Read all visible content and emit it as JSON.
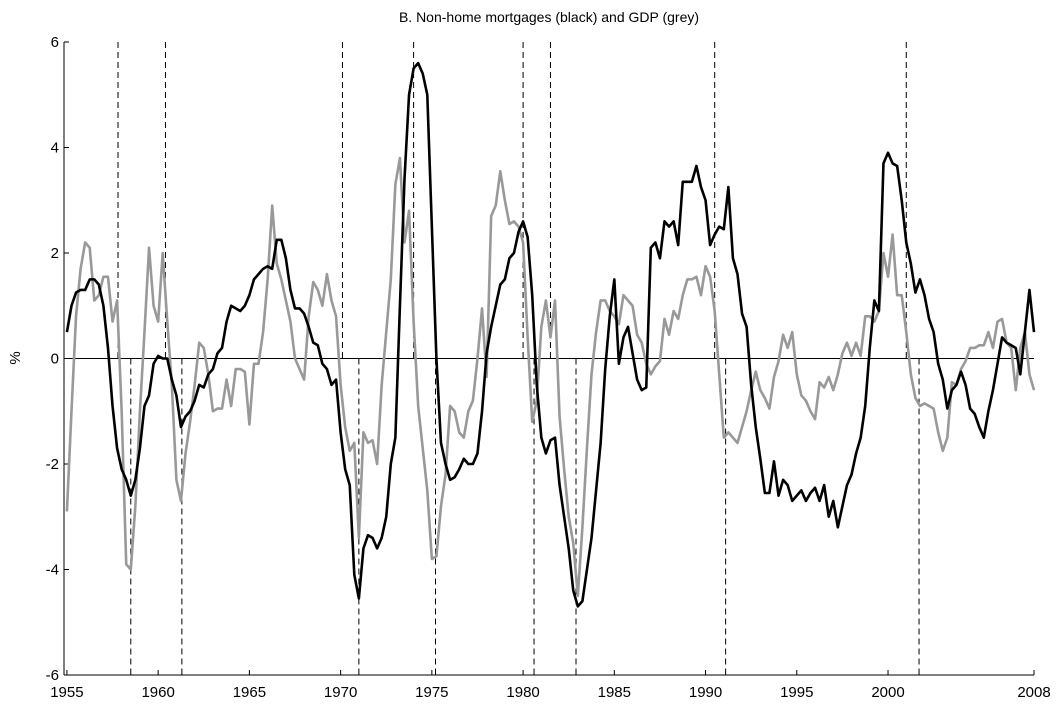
{
  "chart_data": {
    "type": "line",
    "title": "B. Non-home mortgages (black) and GDP (grey)",
    "y_label": "%",
    "xlim": [
      1954.84,
      2008
    ],
    "ylim": [
      -6,
      6
    ],
    "xticks": [
      1955,
      1960,
      1965,
      1970,
      1975,
      1980,
      1985,
      1990,
      1995,
      2000,
      2008
    ],
    "yticks": [
      -6,
      -4,
      -2,
      0,
      2,
      4,
      6
    ],
    "peaks": [
      1957.8,
      1960.4,
      1970.1,
      1974.0,
      1980.0,
      1981.5,
      1990.5,
      2001.0
    ],
    "troughs": [
      1958.5,
      1961.3,
      1971.0,
      1975.2,
      1980.6,
      1982.9,
      1991.1,
      2001.7
    ],
    "x": [
      1955,
      1955.25,
      1955.5,
      1955.75,
      1956,
      1956.25,
      1956.5,
      1956.75,
      1957,
      1957.25,
      1957.5,
      1957.75,
      1958,
      1958.25,
      1958.5,
      1958.75,
      1959,
      1959.25,
      1959.5,
      1959.75,
      1960,
      1960.25,
      1960.5,
      1960.75,
      1961,
      1961.25,
      1961.5,
      1961.75,
      1962,
      1962.25,
      1962.5,
      1962.75,
      1963,
      1963.25,
      1963.5,
      1963.75,
      1964,
      1964.25,
      1964.5,
      1964.75,
      1965,
      1965.25,
      1965.5,
      1965.75,
      1966,
      1966.25,
      1966.5,
      1966.75,
      1967,
      1967.25,
      1967.5,
      1967.75,
      1968,
      1968.25,
      1968.5,
      1968.75,
      1969,
      1969.25,
      1969.5,
      1969.75,
      1970,
      1970.25,
      1970.5,
      1970.75,
      1971,
      1971.25,
      1971.5,
      1971.75,
      1972,
      1972.25,
      1972.5,
      1972.75,
      1973,
      1973.25,
      1973.5,
      1973.75,
      1974,
      1974.25,
      1974.5,
      1974.75,
      1975,
      1975.25,
      1975.5,
      1975.75,
      1976,
      1976.25,
      1976.5,
      1976.75,
      1977,
      1977.25,
      1977.5,
      1977.75,
      1978,
      1978.25,
      1978.5,
      1978.75,
      1979,
      1979.25,
      1979.5,
      1979.75,
      1980,
      1980.25,
      1980.5,
      1980.75,
      1981,
      1981.25,
      1981.5,
      1981.75,
      1982,
      1982.25,
      1982.5,
      1982.75,
      1983,
      1983.25,
      1983.5,
      1983.75,
      1984,
      1984.25,
      1984.5,
      1984.75,
      1985,
      1985.25,
      1985.5,
      1985.75,
      1986,
      1986.25,
      1986.5,
      1986.75,
      1987,
      1987.25,
      1987.5,
      1987.75,
      1988,
      1988.25,
      1988.5,
      1988.75,
      1989,
      1989.25,
      1989.5,
      1989.75,
      1990,
      1990.25,
      1990.5,
      1990.75,
      1991,
      1991.25,
      1991.5,
      1991.75,
      1992,
      1992.25,
      1992.5,
      1992.75,
      1993,
      1993.25,
      1993.5,
      1993.75,
      1994,
      1994.25,
      1994.5,
      1994.75,
      1995,
      1995.25,
      1995.5,
      1995.75,
      1996,
      1996.25,
      1996.5,
      1996.75,
      1997,
      1997.25,
      1997.5,
      1997.75,
      1998,
      1998.25,
      1998.5,
      1998.75,
      1999,
      1999.25,
      1999.5,
      1999.75,
      2000,
      2000.25,
      2000.5,
      2000.75,
      2001,
      2001.25,
      2001.5,
      2001.75,
      2002,
      2002.25,
      2002.5,
      2002.75,
      2003,
      2003.25,
      2003.5,
      2003.75,
      2004,
      2004.25,
      2004.5,
      2004.75,
      2005,
      2005.25,
      2005.5,
      2005.75,
      2006,
      2006.25,
      2006.5,
      2006.75,
      2007,
      2007.25,
      2007.5,
      2007.75,
      2008
    ],
    "series": [
      {
        "color": "#999999",
        "values": [
          -2.9,
          -1.0,
          0.8,
          1.7,
          2.2,
          2.1,
          1.1,
          1.2,
          1.55,
          1.55,
          0.7,
          1.1,
          -1.0,
          -3.9,
          -4.0,
          -2.8,
          -1.0,
          0.5,
          2.1,
          1.0,
          0.7,
          2.0,
          0.7,
          -0.5,
          -2.3,
          -2.7,
          -1.8,
          -1.2,
          -0.5,
          0.3,
          0.2,
          -0.3,
          -1.0,
          -0.95,
          -0.95,
          -0.4,
          -0.9,
          -0.2,
          -0.2,
          -0.25,
          -1.25,
          -0.1,
          -0.1,
          0.5,
          1.5,
          2.9,
          1.8,
          1.5,
          1.1,
          0.7,
          0.0,
          -0.2,
          -0.4,
          0.8,
          1.45,
          1.3,
          1.0,
          1.6,
          1.1,
          0.8,
          -0.5,
          -1.3,
          -1.75,
          -1.6,
          -3.4,
          -1.4,
          -1.6,
          -1.55,
          -2.0,
          -0.5,
          0.5,
          1.5,
          3.3,
          3.8,
          2.2,
          2.8,
          0.7,
          -0.9,
          -1.7,
          -2.5,
          -3.8,
          -3.75,
          -2.8,
          -2.2,
          -0.9,
          -1.0,
          -1.4,
          -1.5,
          -1.0,
          -0.8,
          0.0,
          0.95,
          -0.35,
          2.7,
          2.9,
          3.55,
          3.0,
          2.55,
          2.6,
          2.5,
          2.2,
          0.4,
          -1.2,
          -0.8,
          0.6,
          1.1,
          0.4,
          1.1,
          -1.1,
          -2.1,
          -3.0,
          -3.5,
          -4.5,
          -3.2,
          -1.7,
          -0.3,
          0.5,
          1.1,
          1.1,
          0.9,
          0.8,
          0.65,
          1.2,
          1.1,
          1.0,
          0.45,
          0.3,
          -0.1,
          -0.3,
          -0.15,
          -0.05,
          0.75,
          0.45,
          0.9,
          0.75,
          1.2,
          1.5,
          1.5,
          1.55,
          1.2,
          1.75,
          1.55,
          0.9,
          -0.3,
          -1.5,
          -1.4,
          -1.5,
          -1.6,
          -1.3,
          -1.0,
          -0.6,
          -0.25,
          -0.6,
          -0.75,
          -0.95,
          -0.35,
          -0.05,
          0.45,
          0.2,
          0.5,
          -0.3,
          -0.7,
          -0.8,
          -1.0,
          -1.15,
          -0.45,
          -0.55,
          -0.35,
          -0.6,
          -0.3,
          0.1,
          0.3,
          0.05,
          0.3,
          0.05,
          0.8,
          0.8,
          0.7,
          0.9,
          2.0,
          1.55,
          2.35,
          1.2,
          1.2,
          0.5,
          -0.3,
          -0.75,
          -0.9,
          -0.85,
          -0.9,
          -0.95,
          -1.4,
          -1.75,
          -1.5,
          -0.45,
          -0.5,
          -0.2,
          -0.05,
          0.2,
          0.2,
          0.25,
          0.25,
          0.5,
          0.2,
          0.7,
          0.75,
          0.3,
          0.2,
          -0.6,
          0.2,
          0.5,
          -0.3,
          -0.6
        ]
      },
      {
        "color": "#000000",
        "values": [
          0.5,
          1.0,
          1.25,
          1.3,
          1.3,
          1.5,
          1.5,
          1.4,
          1.0,
          0.2,
          -0.9,
          -1.7,
          -2.1,
          -2.3,
          -2.6,
          -2.3,
          -1.7,
          -0.9,
          -0.7,
          -0.1,
          0.05,
          0.0,
          0.0,
          -0.4,
          -0.7,
          -1.3,
          -1.1,
          -1.0,
          -0.8,
          -0.5,
          -0.55,
          -0.3,
          -0.2,
          0.1,
          0.2,
          0.7,
          1.0,
          0.95,
          0.9,
          1.0,
          1.2,
          1.5,
          1.6,
          1.7,
          1.75,
          1.7,
          2.25,
          2.25,
          1.9,
          1.3,
          0.95,
          0.95,
          0.85,
          0.6,
          0.3,
          0.25,
          -0.1,
          -0.2,
          -0.5,
          -0.4,
          -1.4,
          -2.1,
          -2.4,
          -4.1,
          -4.55,
          -3.6,
          -3.35,
          -3.4,
          -3.6,
          -3.4,
          -3.0,
          -2.0,
          -1.5,
          1.0,
          3.4,
          5.0,
          5.5,
          5.6,
          5.4,
          5.0,
          2.5,
          0.0,
          -1.6,
          -2.0,
          -2.3,
          -2.25,
          -2.1,
          -1.9,
          -2.0,
          -2.0,
          -1.8,
          -1.0,
          0.1,
          0.6,
          1.0,
          1.4,
          1.5,
          1.9,
          2.0,
          2.4,
          2.6,
          2.3,
          1.2,
          -0.5,
          -1.5,
          -1.8,
          -1.55,
          -1.5,
          -2.4,
          -3.0,
          -3.6,
          -4.4,
          -4.7,
          -4.6,
          -4.0,
          -3.4,
          -2.5,
          -1.6,
          -0.2,
          0.8,
          1.5,
          -0.1,
          0.4,
          0.6,
          0.1,
          -0.4,
          -0.6,
          -0.55,
          2.1,
          2.2,
          1.9,
          2.6,
          2.5,
          2.6,
          2.15,
          3.35,
          3.35,
          3.35,
          3.65,
          3.25,
          3.0,
          2.15,
          2.35,
          2.5,
          2.45,
          3.25,
          1.9,
          1.6,
          0.85,
          0.6,
          -0.5,
          -1.3,
          -1.9,
          -2.55,
          -2.55,
          -1.95,
          -2.6,
          -2.3,
          -2.4,
          -2.7,
          -2.6,
          -2.5,
          -2.7,
          -2.55,
          -2.45,
          -2.7,
          -2.4,
          -3.0,
          -2.7,
          -3.2,
          -2.8,
          -2.4,
          -2.2,
          -1.8,
          -1.5,
          -0.9,
          0.2,
          1.1,
          0.9,
          3.7,
          3.9,
          3.7,
          3.65,
          3.0,
          2.2,
          1.8,
          1.25,
          1.5,
          1.2,
          0.75,
          0.5,
          -0.1,
          -0.4,
          -0.95,
          -0.6,
          -0.5,
          -0.25,
          -0.5,
          -0.95,
          -1.05,
          -1.3,
          -1.5,
          -1.0,
          -0.6,
          -0.1,
          0.4,
          0.3,
          0.25,
          0.2,
          -0.3,
          0.5,
          1.3,
          0.5
        ]
      }
    ]
  }
}
